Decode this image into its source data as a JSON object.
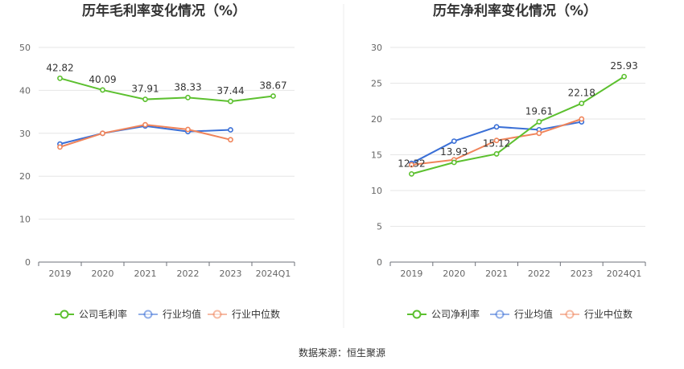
{
  "source_text": "数据来源：恒生聚源",
  "chart_data": [
    {
      "type": "line",
      "title": "历年毛利率变化情况（%）",
      "categories": [
        "2019",
        "2020",
        "2021",
        "2022",
        "2023",
        "2024Q1"
      ],
      "ylim": [
        0,
        50
      ],
      "yticks": [
        0,
        10,
        20,
        30,
        40,
        50
      ],
      "grid": true,
      "legend_position": "bottom",
      "series": [
        {
          "name": "公司毛利率",
          "color": "#5cc02f",
          "values": [
            42.82,
            40.09,
            37.91,
            38.33,
            37.44,
            38.67
          ],
          "labels": [
            "42.82",
            "40.09",
            "37.91",
            "38.33",
            "37.44",
            "38.67"
          ]
        },
        {
          "name": "行业均值",
          "color": "#3a6fd6",
          "values": [
            27.5,
            30.0,
            31.7,
            30.4,
            30.8,
            null
          ],
          "labels": null
        },
        {
          "name": "行业中位数",
          "color": "#f0845a",
          "values": [
            26.8,
            30.0,
            32.0,
            30.9,
            28.5,
            null
          ],
          "labels": null
        }
      ]
    },
    {
      "type": "line",
      "title": "历年净利率变化情况（%）",
      "categories": [
        "2019",
        "2020",
        "2021",
        "2022",
        "2023",
        "2024Q1"
      ],
      "ylim": [
        0,
        30
      ],
      "yticks": [
        0,
        5,
        10,
        15,
        20,
        25,
        30
      ],
      "grid": true,
      "legend_position": "bottom",
      "series": [
        {
          "name": "公司净利率",
          "color": "#5cc02f",
          "values": [
            12.32,
            13.93,
            15.12,
            19.61,
            22.18,
            25.93
          ],
          "labels": [
            "12.32",
            "13.93",
            "15.12",
            "19.61",
            "22.18",
            "25.93"
          ]
        },
        {
          "name": "行业均值",
          "color": "#3a6fd6",
          "values": [
            13.8,
            16.9,
            18.9,
            18.5,
            19.6,
            null
          ],
          "labels": null
        },
        {
          "name": "行业中位数",
          "color": "#f0845a",
          "values": [
            13.6,
            14.3,
            17.0,
            18.0,
            20.0,
            null
          ],
          "labels": null
        }
      ]
    }
  ]
}
